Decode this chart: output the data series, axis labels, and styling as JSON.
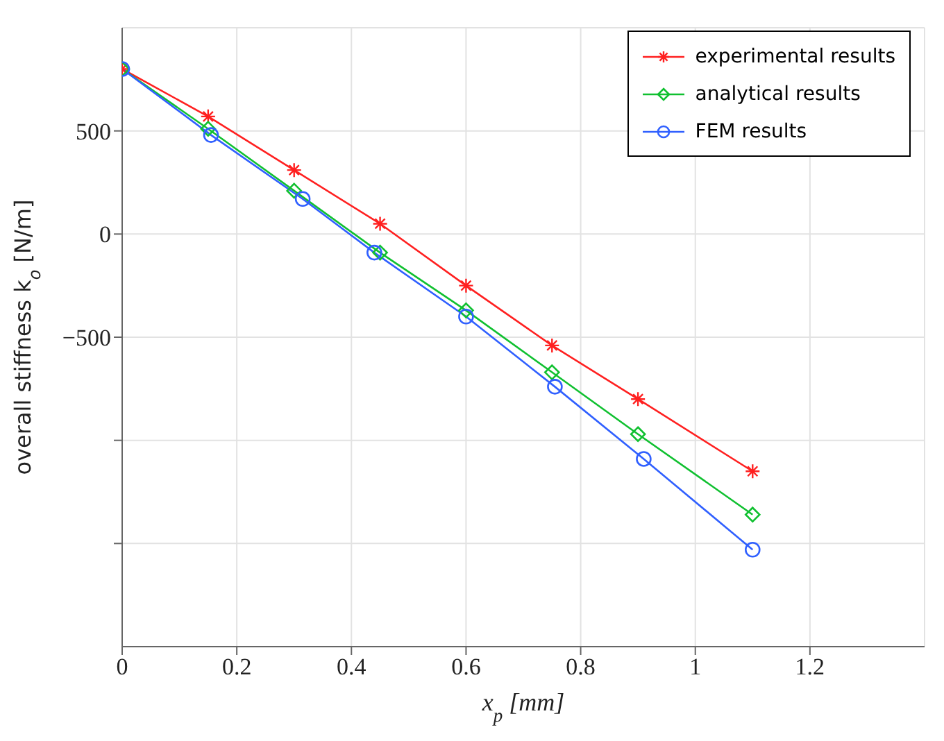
{
  "chart_data": {
    "type": "line",
    "xlabel": "x$_{p}$ [mm]",
    "ylabel": "overall stiffness k$_{o}$ [N/m]",
    "xlim": [
      0,
      1.4
    ],
    "xticks": [
      0,
      0.2,
      0.4,
      0.6,
      0.8,
      1,
      1.2
    ],
    "ylim": [
      -2000,
      1000
    ],
    "yticks": [
      {
        "value": -1500,
        "label": null
      },
      {
        "value": -1000,
        "label": null
      },
      -500,
      0,
      500
    ],
    "grid": true,
    "legend": "top right",
    "line_style": "solid",
    "series": [
      {
        "name": "experimental results",
        "color": "#ff2020",
        "marker": "cross",
        "x": [
          0,
          0.15,
          0.3,
          0.45,
          0.6,
          0.75,
          0.9,
          1.1
        ],
        "values": [
          800,
          570,
          310,
          50,
          -250,
          -540,
          -800,
          -1150
        ]
      },
      {
        "name": "analytical results",
        "color": "#10c030",
        "marker": "diamond",
        "x": [
          0,
          0.15,
          0.3,
          0.45,
          0.6,
          0.75,
          0.9,
          1.1
        ],
        "values": [
          800,
          510,
          210,
          -90,
          -370,
          -670,
          -970,
          -1360
        ]
      },
      {
        "name": "FEM results",
        "color": "#3060ff",
        "marker": "circle",
        "x": [
          0,
          0.155,
          0.315,
          0.44,
          0.6,
          0.755,
          0.91,
          1.1
        ],
        "values": [
          800,
          480,
          170,
          -90,
          -400,
          -740,
          -1090,
          -1530
        ]
      }
    ]
  }
}
